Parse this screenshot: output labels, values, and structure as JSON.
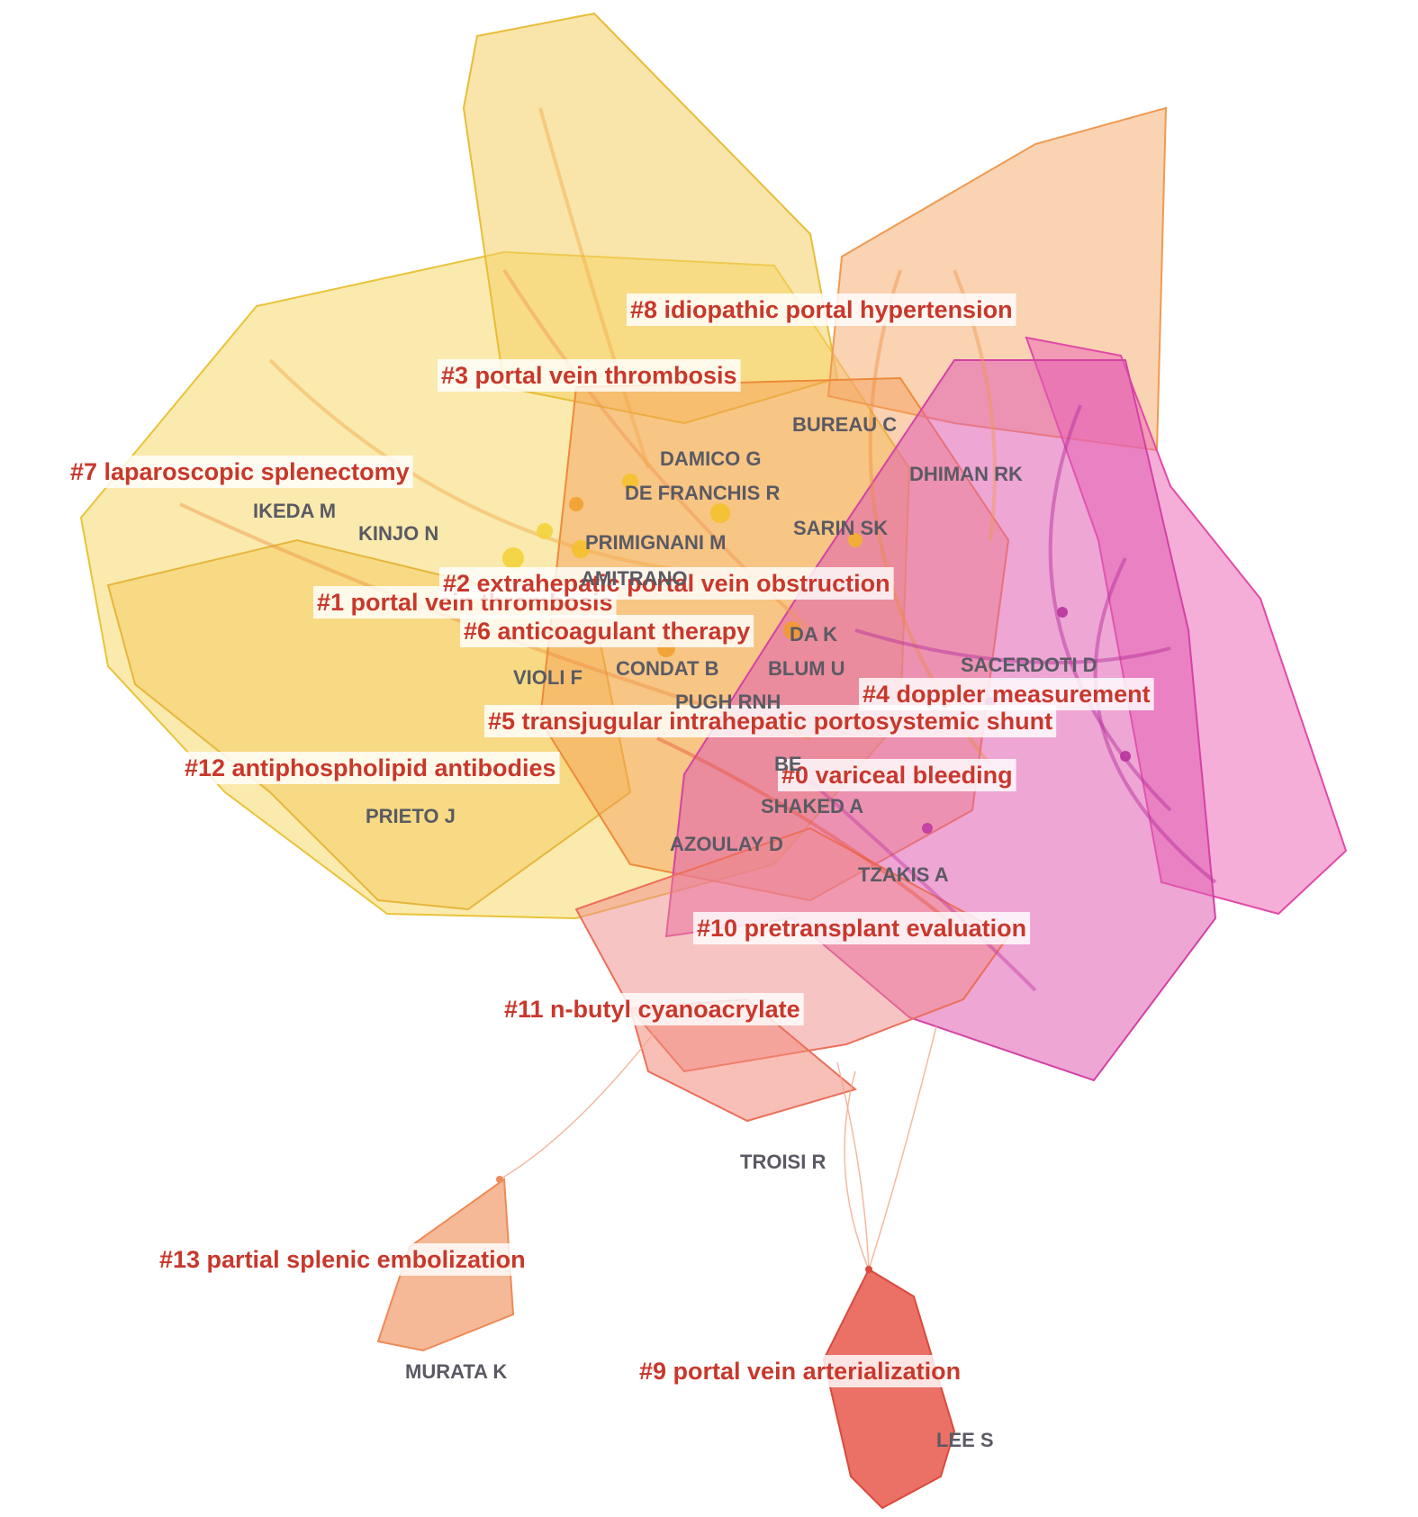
{
  "clusters": [
    {
      "id": "c0",
      "label": "#0 variceal bleeding",
      "color": "#c12fa8"
    },
    {
      "id": "c1",
      "label": "#1 portal vein thrombosis",
      "color": "#f2c53c"
    },
    {
      "id": "c2",
      "label": "#2 extrahepatic portal vein obstruction",
      "color": "#ee8a3a"
    },
    {
      "id": "c3",
      "label": "#3 portal vein thrombosis",
      "color": "#f0c93c"
    },
    {
      "id": "c4",
      "label": "#4 doppler measurement",
      "color": "#e656b4"
    },
    {
      "id": "c5",
      "label": "#5 transjugular intrahepatic portosystemic shunt",
      "color": "#ea6a3c"
    },
    {
      "id": "c6",
      "label": "#6 anticoagulant therapy",
      "color": "#f1a83a"
    },
    {
      "id": "c7",
      "label": "#7 laparoscopic splenectomy",
      "color": "#f3d455"
    },
    {
      "id": "c8",
      "label": "#8 idiopathic portal hypertension",
      "color": "#f4a55c"
    },
    {
      "id": "c9",
      "label": "#9 portal vein arterialization",
      "color": "#e5473a"
    },
    {
      "id": "c10",
      "label": "#10 pretransplant evaluation",
      "color": "#e2469e"
    },
    {
      "id": "c11",
      "label": "#11 n-butyl cyanoacrylate",
      "color": "#ec6f5a"
    },
    {
      "id": "c12",
      "label": "#12 antiphospholipid antibodies",
      "color": "#f0b24a"
    },
    {
      "id": "c13",
      "label": "#13 partial splenic embolization",
      "color": "#ef8a55"
    }
  ],
  "authors": [
    "BUREAU C",
    "DAMICO G",
    "DHIMAN RK",
    "DE FRANCHIS R",
    "IKEDA M",
    "KINJO N",
    "SARIN SK",
    "PRIMIGNANI M",
    "AMITRANO",
    "DA K",
    "SACERDOTI D",
    "CONDAT B",
    "BLUM U",
    "VIOLI F",
    "PUGH RNH",
    "BE",
    "SHAKED A",
    "PRIETO J",
    "AZOULAY D",
    "TZAKIS A",
    "TROISI R",
    "MURATA K",
    "LEE S"
  ],
  "colors": {
    "yellow": "#f2c94c",
    "orange": "#f29a4c",
    "magenta": "#d94cb0",
    "pink": "#f070b8",
    "red": "#e8553f",
    "label_red": "#c8382c",
    "author_gray": "#5a5a64"
  }
}
